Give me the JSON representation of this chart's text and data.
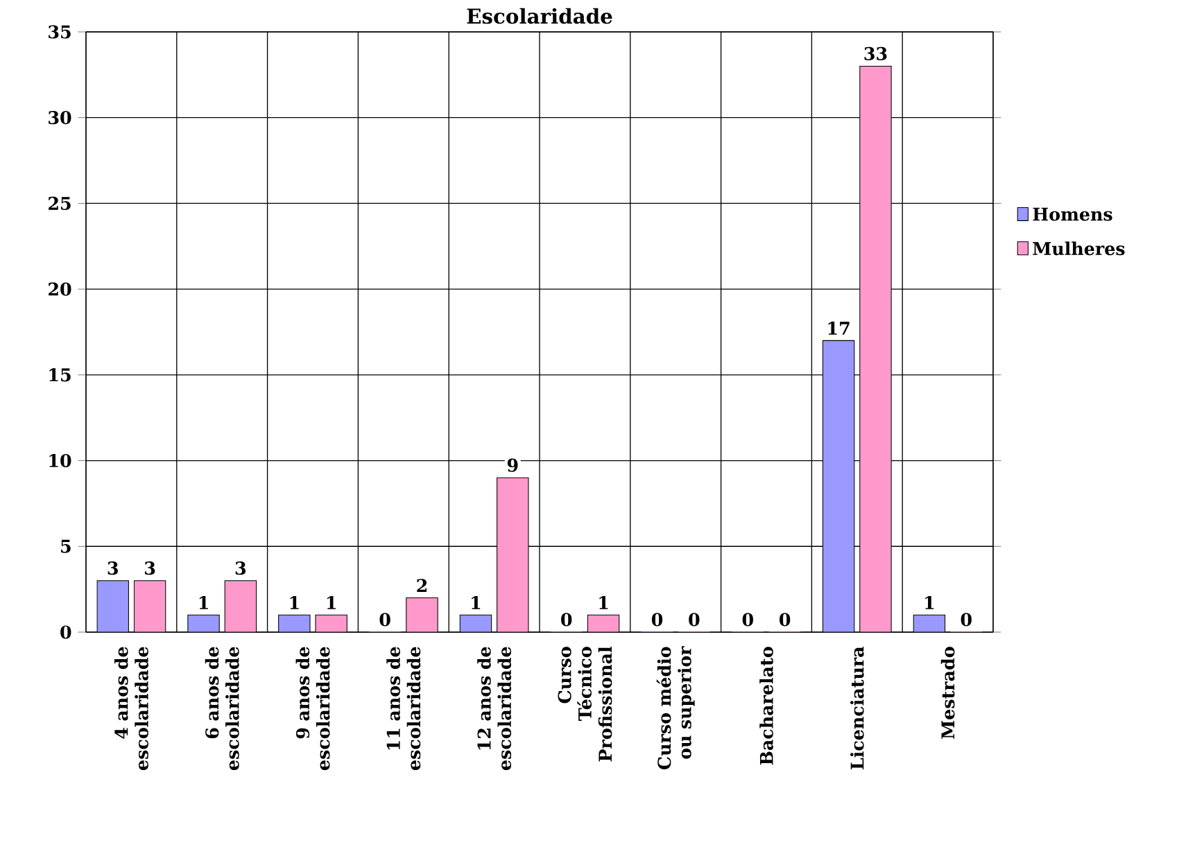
{
  "chart_data": {
    "type": "bar",
    "title": "Escolaridade",
    "categories": [
      "4 anos de escolaridade",
      "6 anos de escolaridade",
      "9 anos de escolaridade",
      "11 anos de escolaridade",
      "12 anos de escolaridade",
      "Curso Técnico Profissional",
      "Curso médio ou superior",
      "Bacharelato",
      "Licenciatura",
      "Mestrado"
    ],
    "series": [
      {
        "name": "Homens",
        "color": "#9999ff",
        "values": [
          3,
          1,
          1,
          0,
          1,
          0,
          0,
          0,
          17,
          1
        ]
      },
      {
        "name": "Mulheres",
        "color": "#ff99cc",
        "values": [
          3,
          3,
          1,
          2,
          9,
          1,
          0,
          0,
          33,
          0
        ]
      }
    ],
    "ylim": [
      0,
      35
    ],
    "yticks": [
      0,
      5,
      10,
      15,
      20,
      25,
      30,
      35
    ],
    "grid": true,
    "legend": "right",
    "data_labels": true
  }
}
